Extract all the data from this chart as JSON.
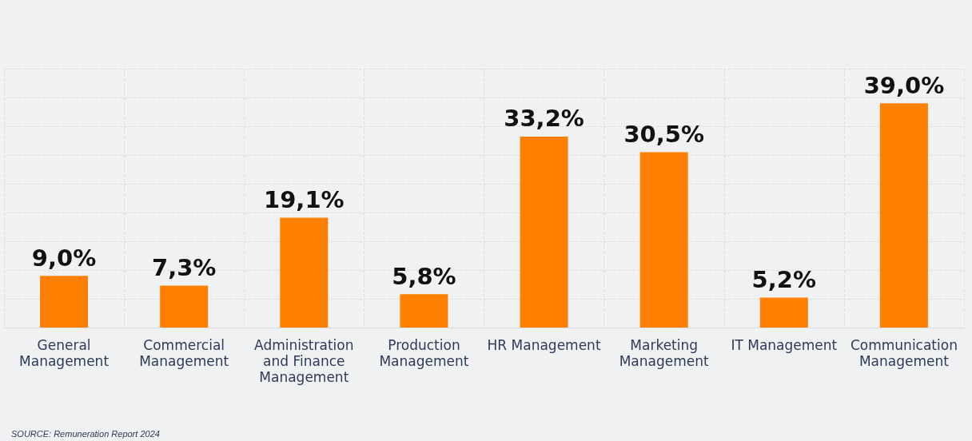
{
  "chart_data": {
    "type": "bar",
    "categories": [
      "General\nManagement",
      "Commercial\nManagement",
      "Administration\nand Finance\nManagement",
      "Production\nManagement",
      "HR Management",
      "Marketing\nManagement",
      "IT Management",
      "Communication\nManagement"
    ],
    "values": [
      9.0,
      7.3,
      19.1,
      5.8,
      33.2,
      30.5,
      5.2,
      39.0
    ],
    "value_labels": [
      "9,0%",
      "7,3%",
      "19,1%",
      "5,8%",
      "33,2%",
      "30,5%",
      "5,2%",
      "39,0%"
    ],
    "color": "#ff8000",
    "ylim": [
      0,
      45
    ],
    "yticks": [
      {
        "value": 0,
        "label": null
      },
      {
        "value": 5,
        "label": null
      },
      {
        "value": 10,
        "label": null
      },
      {
        "value": 15,
        "label": null
      },
      {
        "value": 20,
        "label": null
      },
      {
        "value": 25,
        "label": null
      },
      {
        "value": 30,
        "label": null
      },
      {
        "value": 35,
        "label": null
      },
      {
        "value": 40,
        "label": null
      },
      {
        "value": 45,
        "label": null
      }
    ],
    "tick_labels": "x",
    "grid": true,
    "annotations": [
      "SOURCE: Remuneration Report 2024"
    ]
  }
}
